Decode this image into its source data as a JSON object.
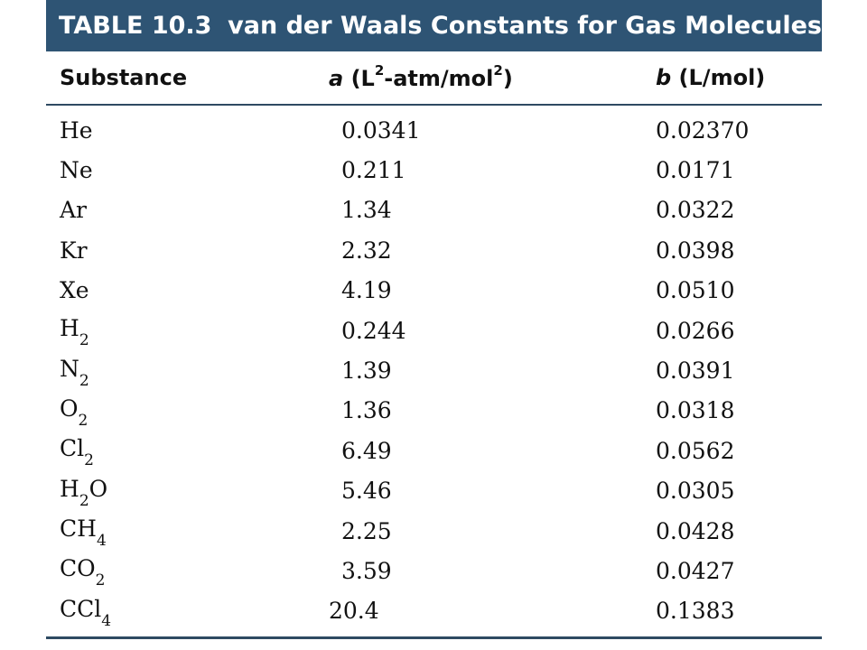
{
  "title": {
    "number": "TABLE 10.3",
    "text": "van der Waals Constants for Gas Molecules"
  },
  "header": {
    "substance": "Substance",
    "a_symbol": "a",
    "a_unit_pre": "(L",
    "a_unit_exp1": "2",
    "a_unit_mid": "-atm/mol",
    "a_unit_exp2": "2",
    "a_unit_post": ")",
    "b_symbol": "b",
    "b_unit": "(L/mol)"
  },
  "rows": [
    {
      "sub_base": "He",
      "sub_index": "",
      "sub_tail": "",
      "a": "0.0341",
      "b": "0.02370"
    },
    {
      "sub_base": "Ne",
      "sub_index": "",
      "sub_tail": "",
      "a": "0.211",
      "b": "0.0171"
    },
    {
      "sub_base": "Ar",
      "sub_index": "",
      "sub_tail": "",
      "a": "1.34",
      "b": "0.0322"
    },
    {
      "sub_base": "Kr",
      "sub_index": "",
      "sub_tail": "",
      "a": "2.32",
      "b": "0.0398"
    },
    {
      "sub_base": "Xe",
      "sub_index": "",
      "sub_tail": "",
      "a": "4.19",
      "b": "0.0510"
    },
    {
      "sub_base": "H",
      "sub_index": "2",
      "sub_tail": "",
      "a": "0.244",
      "b": "0.0266"
    },
    {
      "sub_base": "N",
      "sub_index": "2",
      "sub_tail": "",
      "a": "1.39",
      "b": "0.0391"
    },
    {
      "sub_base": "O",
      "sub_index": "2",
      "sub_tail": "",
      "a": "1.36",
      "b": "0.0318"
    },
    {
      "sub_base": "Cl",
      "sub_index": "2",
      "sub_tail": "",
      "a": "6.49",
      "b": "0.0562"
    },
    {
      "sub_base": "H",
      "sub_index": "2",
      "sub_tail": "O",
      "a": "5.46",
      "b": "0.0305"
    },
    {
      "sub_base": "CH",
      "sub_index": "4",
      "sub_tail": "",
      "a": "2.25",
      "b": "0.0428"
    },
    {
      "sub_base": "CO",
      "sub_index": "2",
      "sub_tail": "",
      "a": "3.59",
      "b": "0.0427"
    },
    {
      "sub_base": "CCl",
      "sub_index": "4",
      "sub_tail": "",
      "a": "20.4",
      "b": "0.1383"
    }
  ]
}
